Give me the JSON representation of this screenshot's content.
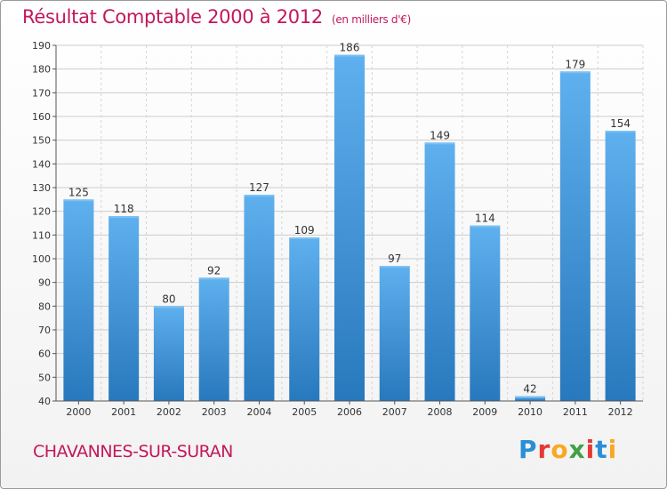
{
  "chart_data": {
    "type": "bar",
    "title": "Résultat Comptable 2000 à 2012",
    "unit": "(en milliers d'€)",
    "categories": [
      "2000",
      "2001",
      "2002",
      "2003",
      "2004",
      "2005",
      "2006",
      "2007",
      "2008",
      "2009",
      "2010",
      "2011",
      "2012"
    ],
    "values": [
      125,
      118,
      80,
      92,
      127,
      109,
      186,
      97,
      149,
      114,
      42,
      179,
      154
    ],
    "ylim": [
      40,
      190
    ],
    "yticks": [
      40,
      50,
      60,
      70,
      80,
      90,
      100,
      110,
      120,
      130,
      140,
      150,
      160,
      170,
      180,
      190
    ],
    "grid": true,
    "colors": {
      "bar": "#3a8fd6",
      "bar_light": "#5aaaea",
      "bar_dark": "#2b79bd",
      "title": "#c2185b",
      "grid": "#cccccc"
    }
  },
  "location": "CHAVANNES-SUR-SURAN",
  "logo": {
    "letters": [
      "P",
      "r",
      "o",
      "x",
      "i",
      "t",
      "i"
    ],
    "colors": [
      "#2a8fd6",
      "#e53935",
      "#f9a825",
      "#43a047",
      "#e53935",
      "#2a8fd6",
      "#f9a825"
    ]
  }
}
